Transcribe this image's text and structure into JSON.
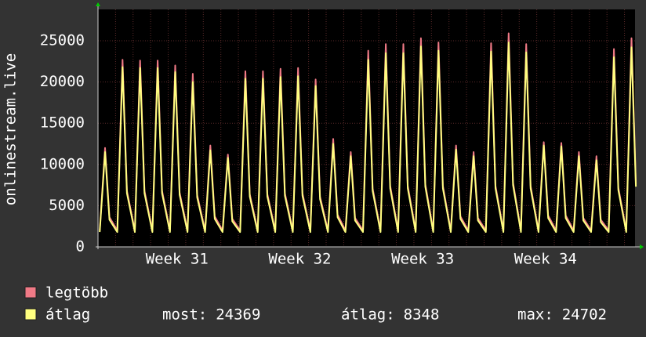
{
  "chart_data": {
    "type": "line",
    "y_label": "onlinestream.live",
    "xlim": [
      0,
      30.6
    ],
    "xticks": [
      {
        "value": 4.5,
        "label": "Week 31"
      },
      {
        "value": 11.5,
        "label": "Week 32"
      },
      {
        "value": 18.5,
        "label": "Week 33"
      },
      {
        "value": 25.5,
        "label": "Week 34"
      }
    ],
    "ylim": [
      0,
      28800
    ],
    "yticks": [
      0,
      5000,
      10000,
      15000,
      20000,
      25000
    ],
    "grid": true,
    "x": [
      0.1,
      0.4,
      0.65,
      1.1,
      1.4,
      1.65,
      2.1,
      2.4,
      2.65,
      3.1,
      3.4,
      3.65,
      4.1,
      4.4,
      4.65,
      5.1,
      5.4,
      5.65,
      6.1,
      6.4,
      6.65,
      7.1,
      7.4,
      7.65,
      8.1,
      8.4,
      8.65,
      9.1,
      9.4,
      9.65,
      10.1,
      10.4,
      10.65,
      11.1,
      11.4,
      11.65,
      12.1,
      12.4,
      12.65,
      13.1,
      13.4,
      13.65,
      14.1,
      14.4,
      14.65,
      15.1,
      15.4,
      15.65,
      16.1,
      16.4,
      16.65,
      17.1,
      17.4,
      17.65,
      18.1,
      18.4,
      18.65,
      19.1,
      19.4,
      19.65,
      20.1,
      20.4,
      20.65,
      21.1,
      21.4,
      21.65,
      22.1,
      22.4,
      22.65,
      23.1,
      23.4,
      23.65,
      24.1,
      24.4,
      24.65,
      25.1,
      25.4,
      25.65,
      26.1,
      26.4,
      26.65,
      27.1,
      27.4,
      27.65,
      28.1,
      28.4,
      28.65,
      29.1,
      29.4,
      29.65,
      30.1,
      30.4,
      30.65
    ],
    "series": [
      {
        "name": "legtöbb",
        "color": "#f07a86",
        "values": [
          2000,
          12000,
          3600,
          2000,
          22700,
          6800,
          2000,
          22600,
          6800,
          2000,
          22600,
          6800,
          2000,
          22000,
          6600,
          2000,
          21000,
          6300,
          2000,
          12300,
          3700,
          2000,
          11200,
          3400,
          2000,
          21300,
          6400,
          2000,
          21300,
          6400,
          2000,
          21600,
          6500,
          2000,
          21700,
          6500,
          2000,
          20300,
          6100,
          2000,
          13100,
          3900,
          2000,
          11500,
          3500,
          2000,
          23800,
          7100,
          2000,
          24600,
          7400,
          2000,
          24600,
          7400,
          2000,
          25300,
          7600,
          2000,
          24800,
          7400,
          2000,
          12300,
          3700,
          2000,
          11500,
          3500,
          2000,
          24700,
          7400,
          2000,
          25900,
          7800,
          2000,
          24600,
          7400,
          2000,
          12700,
          3800,
          2000,
          12600,
          3800,
          2000,
          11500,
          3500,
          2000,
          11000,
          3300,
          2000,
          24000,
          7200,
          2000,
          25300,
          7600
        ]
      },
      {
        "name": "átlag",
        "color": "#ffff80",
        "values": [
          1800,
          11500,
          3300,
          1800,
          21800,
          6500,
          1800,
          21700,
          6500,
          1800,
          21700,
          6500,
          1800,
          21200,
          6300,
          1800,
          20000,
          6000,
          1800,
          11700,
          3400,
          1800,
          10800,
          3100,
          1800,
          20400,
          6100,
          1800,
          20400,
          6100,
          1800,
          20600,
          6200,
          1800,
          20700,
          6200,
          1800,
          19500,
          5800,
          1800,
          12500,
          3600,
          1800,
          11000,
          3200,
          1800,
          22700,
          6800,
          1800,
          23500,
          7100,
          1800,
          23500,
          7100,
          1800,
          24300,
          7300,
          1800,
          23800,
          7100,
          1800,
          11800,
          3400,
          1800,
          11000,
          3200,
          1800,
          23700,
          7100,
          1800,
          24800,
          7500,
          1800,
          23600,
          7100,
          1800,
          12300,
          3500,
          1800,
          12200,
          3500,
          1800,
          11000,
          3200,
          1800,
          10500,
          3000,
          1800,
          23000,
          6900,
          1800,
          24200,
          7300
        ]
      }
    ],
    "stats": [
      {
        "label": "most:",
        "value": 24369
      },
      {
        "label": "átlag:",
        "value": 8348
      },
      {
        "label": "max:",
        "value": 24702
      }
    ]
  }
}
